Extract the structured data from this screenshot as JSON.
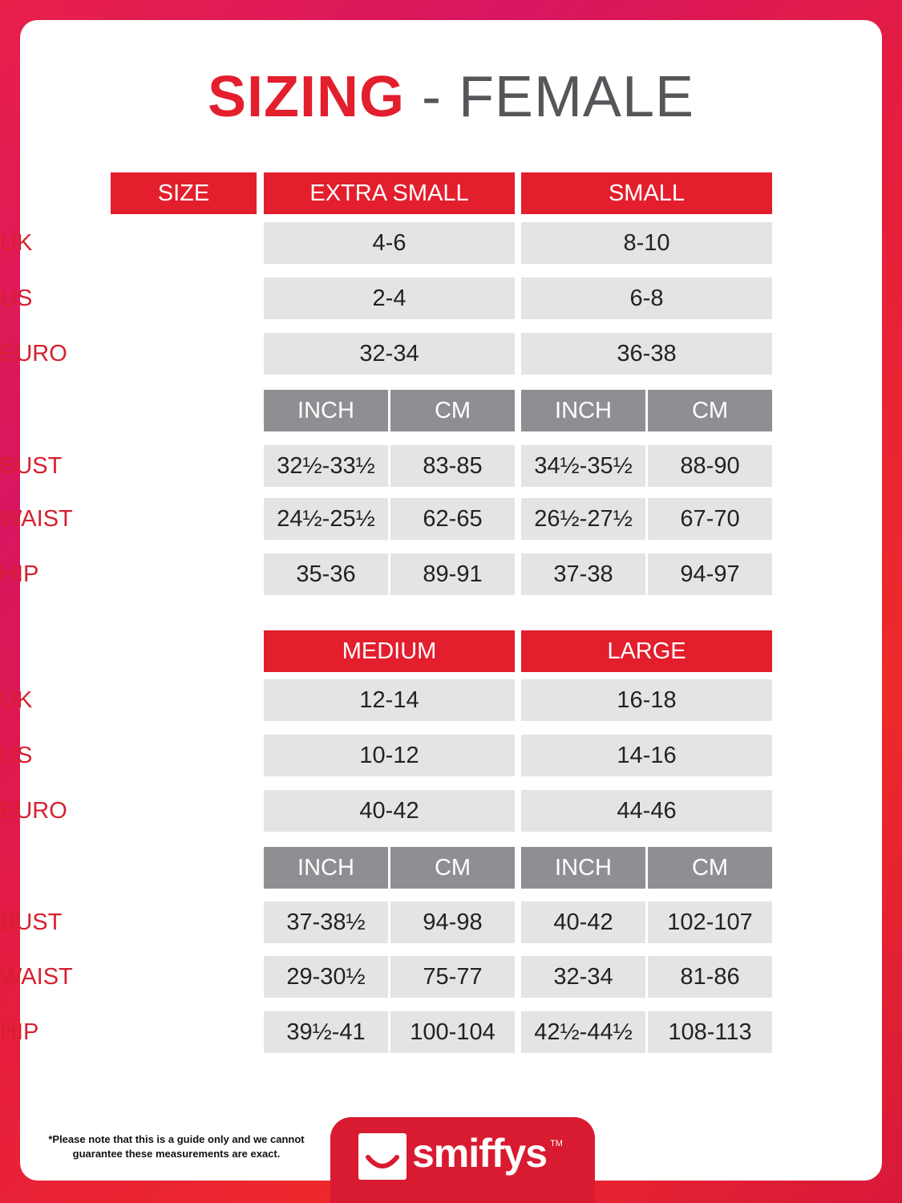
{
  "title": {
    "bold": "SIZING",
    "rest": " - FEMALE"
  },
  "colors": {
    "accent": "#e31e2d",
    "subheader": "#8e8f92",
    "cell": "#e4e4e4"
  },
  "size_label": "SIZE",
  "sections": [
    {
      "sizes": [
        "EXTRA SMALL",
        "SMALL"
      ],
      "rows": [
        {
          "label": "UK",
          "values": [
            "4-6",
            "8-10"
          ]
        },
        {
          "label": "US",
          "values": [
            "2-4",
            "6-8"
          ]
        },
        {
          "label": "EURO",
          "values": [
            "32-34",
            "36-38"
          ]
        }
      ],
      "units": [
        "INCH",
        "CM",
        "INCH",
        "CM"
      ],
      "measures": [
        {
          "label": "BUST",
          "values": [
            "32½-33½",
            "83-85",
            "34½-35½",
            "88-90"
          ]
        },
        {
          "label": "WAIST",
          "values": [
            "24½-25½",
            "62-65",
            "26½-27½",
            "67-70"
          ]
        },
        {
          "label": "HIP",
          "values": [
            "35-36",
            "89-91",
            "37-38",
            "94-97"
          ]
        }
      ]
    },
    {
      "sizes": [
        "MEDIUM",
        "LARGE"
      ],
      "rows": [
        {
          "label": "UK",
          "values": [
            "12-14",
            "16-18"
          ]
        },
        {
          "label": "US",
          "values": [
            "10-12",
            "14-16"
          ]
        },
        {
          "label": "EURO",
          "values": [
            "40-42",
            "44-46"
          ]
        }
      ],
      "units": [
        "INCH",
        "CM",
        "INCH",
        "CM"
      ],
      "measures": [
        {
          "label": "BUST",
          "values": [
            "37-38½",
            "94-98",
            "40-42",
            "102-107"
          ]
        },
        {
          "label": "WAIST",
          "values": [
            "29-30½",
            "75-77",
            "32-34",
            "81-86"
          ]
        },
        {
          "label": "HIP",
          "values": [
            "39½-41",
            "100-104",
            "42½-44½",
            "108-113"
          ]
        }
      ]
    }
  ],
  "footer": {
    "note": "*Please note that this is a guide only and we cannot guarantee these measurements are exact.",
    "brand": "smiffys",
    "tm": "TM"
  }
}
